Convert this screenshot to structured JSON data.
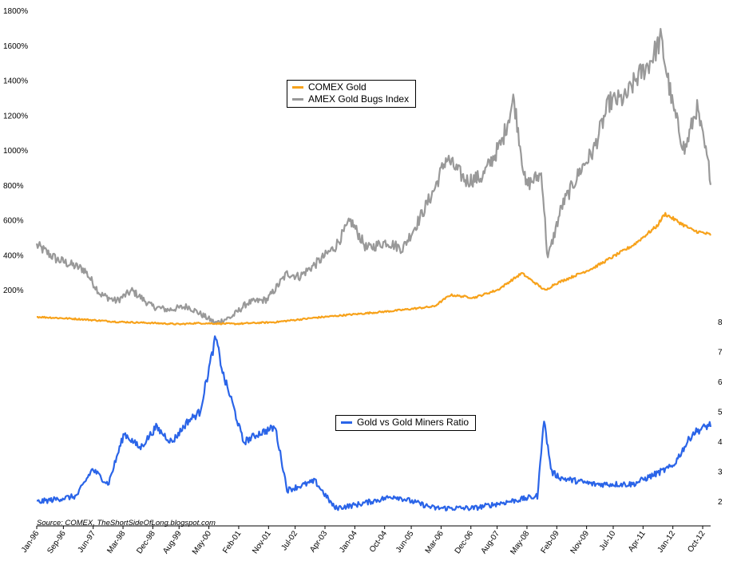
{
  "chart_data": [
    {
      "type": "line",
      "title": "",
      "ylabel": "",
      "ylim": [
        0,
        1800
      ],
      "y_ticks": [
        "1800%",
        "1600%",
        "1400%",
        "1200%",
        "1000%",
        "800%",
        "600%",
        "400%",
        "200%"
      ],
      "y_tick_values": [
        1800,
        1600,
        1400,
        1200,
        1000,
        800,
        600,
        400,
        200
      ],
      "legend": {
        "placement": "top-center"
      },
      "series": [
        {
          "name": "COMEX Gold",
          "color": "#f7a21b",
          "x": [
            1996.0,
            1997.0,
            1998.0,
            1999.0,
            1999.6,
            2000.0,
            2001.0,
            2002.0,
            2003.0,
            2004.0,
            2005.0,
            2006.0,
            2006.4,
            2007.0,
            2007.6,
            2008.2,
            2008.8,
            2009.0,
            2010.0,
            2011.0,
            2011.6,
            2011.8,
            2012.5,
            2012.95
          ],
          "values": [
            50,
            38,
            22,
            14,
            8,
            14,
            10,
            20,
            45,
            65,
            85,
            110,
            175,
            160,
            205,
            300,
            200,
            235,
            330,
            460,
            570,
            640,
            545,
            520
          ]
        },
        {
          "name": "AMEX Gold Bugs Index",
          "color": "#999999",
          "x": [
            1996.0,
            1996.5,
            1997.2,
            1997.6,
            1998.0,
            1998.4,
            1998.9,
            1999.3,
            1999.8,
            2000.5,
            2000.9,
            2001.3,
            2001.8,
            2002.3,
            2002.6,
            2003.0,
            2003.5,
            2003.9,
            2004.3,
            2004.8,
            2005.2,
            2005.6,
            2006.0,
            2006.3,
            2006.8,
            2007.2,
            2007.7,
            2008.0,
            2008.3,
            2008.7,
            2008.85,
            2009.2,
            2009.7,
            2010.0,
            2010.4,
            2010.8,
            2011.1,
            2011.4,
            2011.7,
            2012.0,
            2012.3,
            2012.6,
            2012.95
          ],
          "values": [
            460,
            380,
            320,
            180,
            140,
            200,
            110,
            90,
            110,
            15,
            50,
            130,
            150,
            300,
            280,
            350,
            450,
            600,
            440,
            480,
            440,
            600,
            780,
            960,
            830,
            850,
            1050,
            1300,
            800,
            870,
            380,
            680,
            900,
            1000,
            1280,
            1300,
            1420,
            1500,
            1640,
            1250,
            1000,
            1250,
            850
          ]
        }
      ]
    },
    {
      "type": "line",
      "ylim": [
        1.5,
        8
      ],
      "y_ticks": [
        "8",
        "7",
        "6",
        "5",
        "4",
        "3",
        "2"
      ],
      "y_tick_values": [
        8,
        7,
        6,
        5,
        4,
        3,
        2
      ],
      "legend": {
        "placement": "center"
      },
      "series": [
        {
          "name": "Gold vs Gold Miners Ratio",
          "color": "#2a64e8",
          "x": [
            1996.0,
            1997.0,
            1997.4,
            1997.8,
            1998.2,
            1998.6,
            1999.0,
            1999.4,
            1999.8,
            2000.1,
            2000.5,
            2000.7,
            2000.9,
            2001.2,
            2001.6,
            2002.0,
            2002.3,
            2003.0,
            2003.5,
            2004.0,
            2005.0,
            2006.0,
            2007.0,
            2007.8,
            2008.6,
            2008.75,
            2008.95,
            2009.2,
            2010.0,
            2011.0,
            2012.0,
            2012.5,
            2012.95
          ],
          "values": [
            2.0,
            2.2,
            3.1,
            2.6,
            4.3,
            3.8,
            4.5,
            4.0,
            4.7,
            5.0,
            7.5,
            6.2,
            5.4,
            4.0,
            4.3,
            4.5,
            2.4,
            2.7,
            1.8,
            1.9,
            2.2,
            1.8,
            1.8,
            2.0,
            2.2,
            4.8,
            3.0,
            2.8,
            2.6,
            2.6,
            3.2,
            4.3,
            4.6
          ]
        }
      ]
    }
  ],
  "x_axis": {
    "labels": [
      "Jan-96",
      "Sep-96",
      "Jun-97",
      "Mar-98",
      "Dec-98",
      "Aug-99",
      "May-00",
      "Feb-01",
      "Nov-01",
      "Jul-02",
      "Apr-03",
      "Jan-04",
      "Oct-04",
      "Jun-05",
      "Mar-06",
      "Dec-06",
      "Aug-07",
      "May-08",
      "Feb-09",
      "Nov-09",
      "Jul-10",
      "Apr-11",
      "Jan-12",
      "Oct-12"
    ],
    "positions": [
      1996.0,
      1996.67,
      1997.42,
      1998.17,
      1998.92,
      1999.58,
      2000.33,
      2001.08,
      2001.83,
      2002.5,
      2003.25,
      2004.0,
      2004.75,
      2005.42,
      2006.17,
      2006.92,
      2007.58,
      2008.33,
      2009.08,
      2009.83,
      2010.5,
      2011.25,
      2012.0,
      2012.75
    ],
    "range": [
      1996.0,
      2012.95
    ]
  },
  "legend_top": {
    "items": [
      {
        "label": "COMEX Gold",
        "color": "#f7a21b"
      },
      {
        "label": "AMEX Gold Bugs Index",
        "color": "#999999"
      }
    ]
  },
  "legend_bottom": {
    "items": [
      {
        "label": "Gold vs Gold Miners Ratio",
        "color": "#2a64e8"
      }
    ]
  },
  "source": "Source: COMEX, TheShortSideOfLong.blogspot.com"
}
